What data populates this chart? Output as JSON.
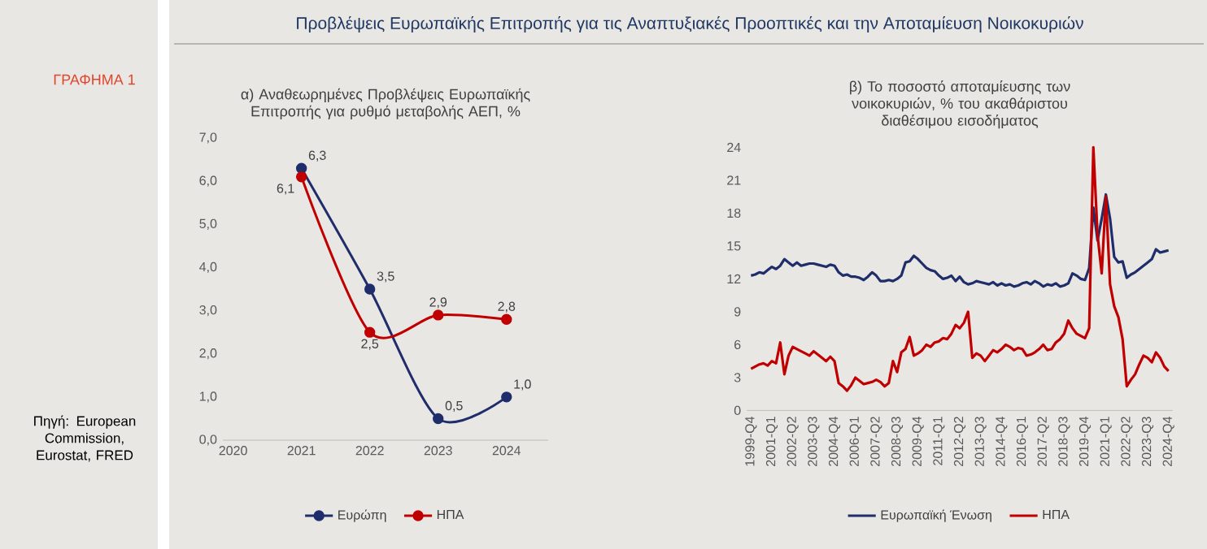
{
  "chart_data": [
    {
      "type": "line",
      "title": "α) Αναθεωρημένες Προβλέψεις Ευρωπαϊκής Επιτροπής για ρυθμό μεταβολής ΑΕΠ, %",
      "categories": [
        "2020",
        "2021",
        "2022",
        "2023",
        "2024"
      ],
      "series": [
        {
          "name": "Ευρώπη",
          "color": "#1f2d6b",
          "values": [
            null,
            6.3,
            3.5,
            0.5,
            1.0
          ],
          "value_labels": [
            null,
            "6,3",
            "3,5",
            "0,5",
            "1,0"
          ]
        },
        {
          "name": "ΗΠΑ",
          "color": "#c00000",
          "values": [
            null,
            6.1,
            2.5,
            2.9,
            2.8
          ],
          "value_labels": [
            null,
            "6,1",
            "2,5",
            "2,9",
            "2,8"
          ]
        }
      ],
      "ylim": [
        0,
        7
      ],
      "yticks": [
        {
          "value": 0,
          "label": "0,0"
        },
        {
          "value": 1,
          "label": "1,0"
        },
        {
          "value": 2,
          "label": "2,0"
        },
        {
          "value": 3,
          "label": "3,0"
        },
        {
          "value": 4,
          "label": "4,0"
        },
        {
          "value": 5,
          "label": "5,0"
        },
        {
          "value": 6,
          "label": "6,0"
        },
        {
          "value": 7,
          "label": "7,0"
        }
      ],
      "marker": "circle",
      "legend": "bottom",
      "annotations": [
        "ΓΡΑΦΗΜΑ 1",
        "Προβλέψεις Ευρωπαϊκής Επιτροπής για τις Αναπτυξιακές Προοπτικές και την Αποταμίευση Νοικοκυριών",
        "Πηγή: European Commission, Eurostat, FRED"
      ]
    },
    {
      "type": "line",
      "title": "β) Το ποσοστό αποταμίευσης των νοικοκυριών, % του ακαθάριστου διαθέσιμου εισοδήματος",
      "categories": [
        "1999-Q4",
        null,
        null,
        null,
        null,
        "2001-Q1",
        null,
        null,
        null,
        null,
        "2002-Q2",
        null,
        null,
        null,
        null,
        "2003-Q3",
        null,
        null,
        null,
        null,
        "2004-Q4",
        null,
        null,
        null,
        null,
        "2006-Q1",
        null,
        null,
        null,
        null,
        "2007-Q2",
        null,
        null,
        null,
        null,
        "2008-Q3",
        null,
        null,
        null,
        null,
        "2009-Q4",
        null,
        null,
        null,
        null,
        "2011-Q1",
        null,
        null,
        null,
        null,
        "2012-Q2",
        null,
        null,
        null,
        null,
        "2013-Q3",
        null,
        null,
        null,
        null,
        "2014-Q4",
        null,
        null,
        null,
        null,
        "2016-Q1",
        null,
        null,
        null,
        null,
        "2017-Q2",
        null,
        null,
        null,
        null,
        "2018-Q3",
        null,
        null,
        null,
        null,
        "2019-Q4",
        null,
        null,
        null,
        null,
        "2021-Q1",
        null,
        null,
        null,
        null,
        "2022-Q2",
        null,
        null,
        null,
        null,
        "2023-Q3",
        null,
        null,
        null,
        null,
        "2024-Q4"
      ],
      "series": [
        {
          "name": "Ευρωπαϊκή Ένωση",
          "color": "#1f2d6b",
          "values": [
            12.3,
            12.4,
            12.6,
            12.5,
            12.8,
            13.1,
            12.9,
            13.2,
            13.8,
            13.5,
            13.2,
            13.5,
            13.2,
            13.3,
            13.4,
            13.4,
            13.3,
            13.2,
            13.1,
            13.3,
            13.2,
            12.6,
            12.3,
            12.4,
            12.2,
            12.2,
            12.1,
            11.9,
            12.2,
            12.6,
            12.3,
            11.8,
            11.8,
            11.9,
            11.8,
            12.0,
            12.3,
            13.5,
            13.6,
            14.1,
            13.8,
            13.4,
            13.0,
            12.8,
            12.7,
            12.3,
            12.0,
            12.1,
            12.3,
            11.8,
            12.2,
            11.7,
            11.5,
            11.6,
            11.8,
            11.7,
            11.6,
            11.5,
            11.7,
            11.4,
            11.6,
            11.4,
            11.5,
            11.3,
            11.4,
            11.6,
            11.7,
            11.5,
            11.8,
            11.6,
            11.3,
            11.5,
            11.4,
            11.6,
            11.3,
            11.4,
            11.6,
            12.5,
            12.3,
            12.0,
            11.9,
            13.0,
            18.5,
            15.5,
            17.5,
            19.7,
            17.5,
            14.0,
            13.5,
            13.6,
            12.1,
            12.4,
            12.6,
            12.9,
            13.2,
            13.5,
            13.8,
            14.7,
            14.4,
            14.5,
            14.6
          ]
        },
        {
          "name": "ΗΠΑ",
          "color": "#c00000",
          "values": [
            3.8,
            4.0,
            4.2,
            4.3,
            4.1,
            4.5,
            4.3,
            6.2,
            3.3,
            5.0,
            5.8,
            5.6,
            5.4,
            5.2,
            5.0,
            5.4,
            5.1,
            4.8,
            4.5,
            4.9,
            4.5,
            2.5,
            2.2,
            1.8,
            2.3,
            3.0,
            2.7,
            2.4,
            2.5,
            2.6,
            2.8,
            2.6,
            2.2,
            2.5,
            4.5,
            3.5,
            5.3,
            5.6,
            6.7,
            5.0,
            5.2,
            5.5,
            6.0,
            5.8,
            6.2,
            6.3,
            6.6,
            6.5,
            7.0,
            7.8,
            7.5,
            8.0,
            9.0,
            4.8,
            5.2,
            5.0,
            4.5,
            5.0,
            5.5,
            5.3,
            5.6,
            6.0,
            5.8,
            5.5,
            5.7,
            5.6,
            5.0,
            5.1,
            5.3,
            5.6,
            6.0,
            5.5,
            5.6,
            6.2,
            6.5,
            7.0,
            8.2,
            7.5,
            7.0,
            6.8,
            6.6,
            7.5,
            24.0,
            16.0,
            12.5,
            19.5,
            11.5,
            9.5,
            8.5,
            6.5,
            2.2,
            2.8,
            3.3,
            4.2,
            5.0,
            4.8,
            4.4,
            5.3,
            4.8,
            4.0,
            3.6
          ]
        }
      ],
      "ylim": [
        0,
        24
      ],
      "yticks": [
        0,
        3,
        6,
        9,
        12,
        15,
        18,
        21,
        24
      ],
      "marker": "none",
      "legend": "bottom"
    }
  ]
}
